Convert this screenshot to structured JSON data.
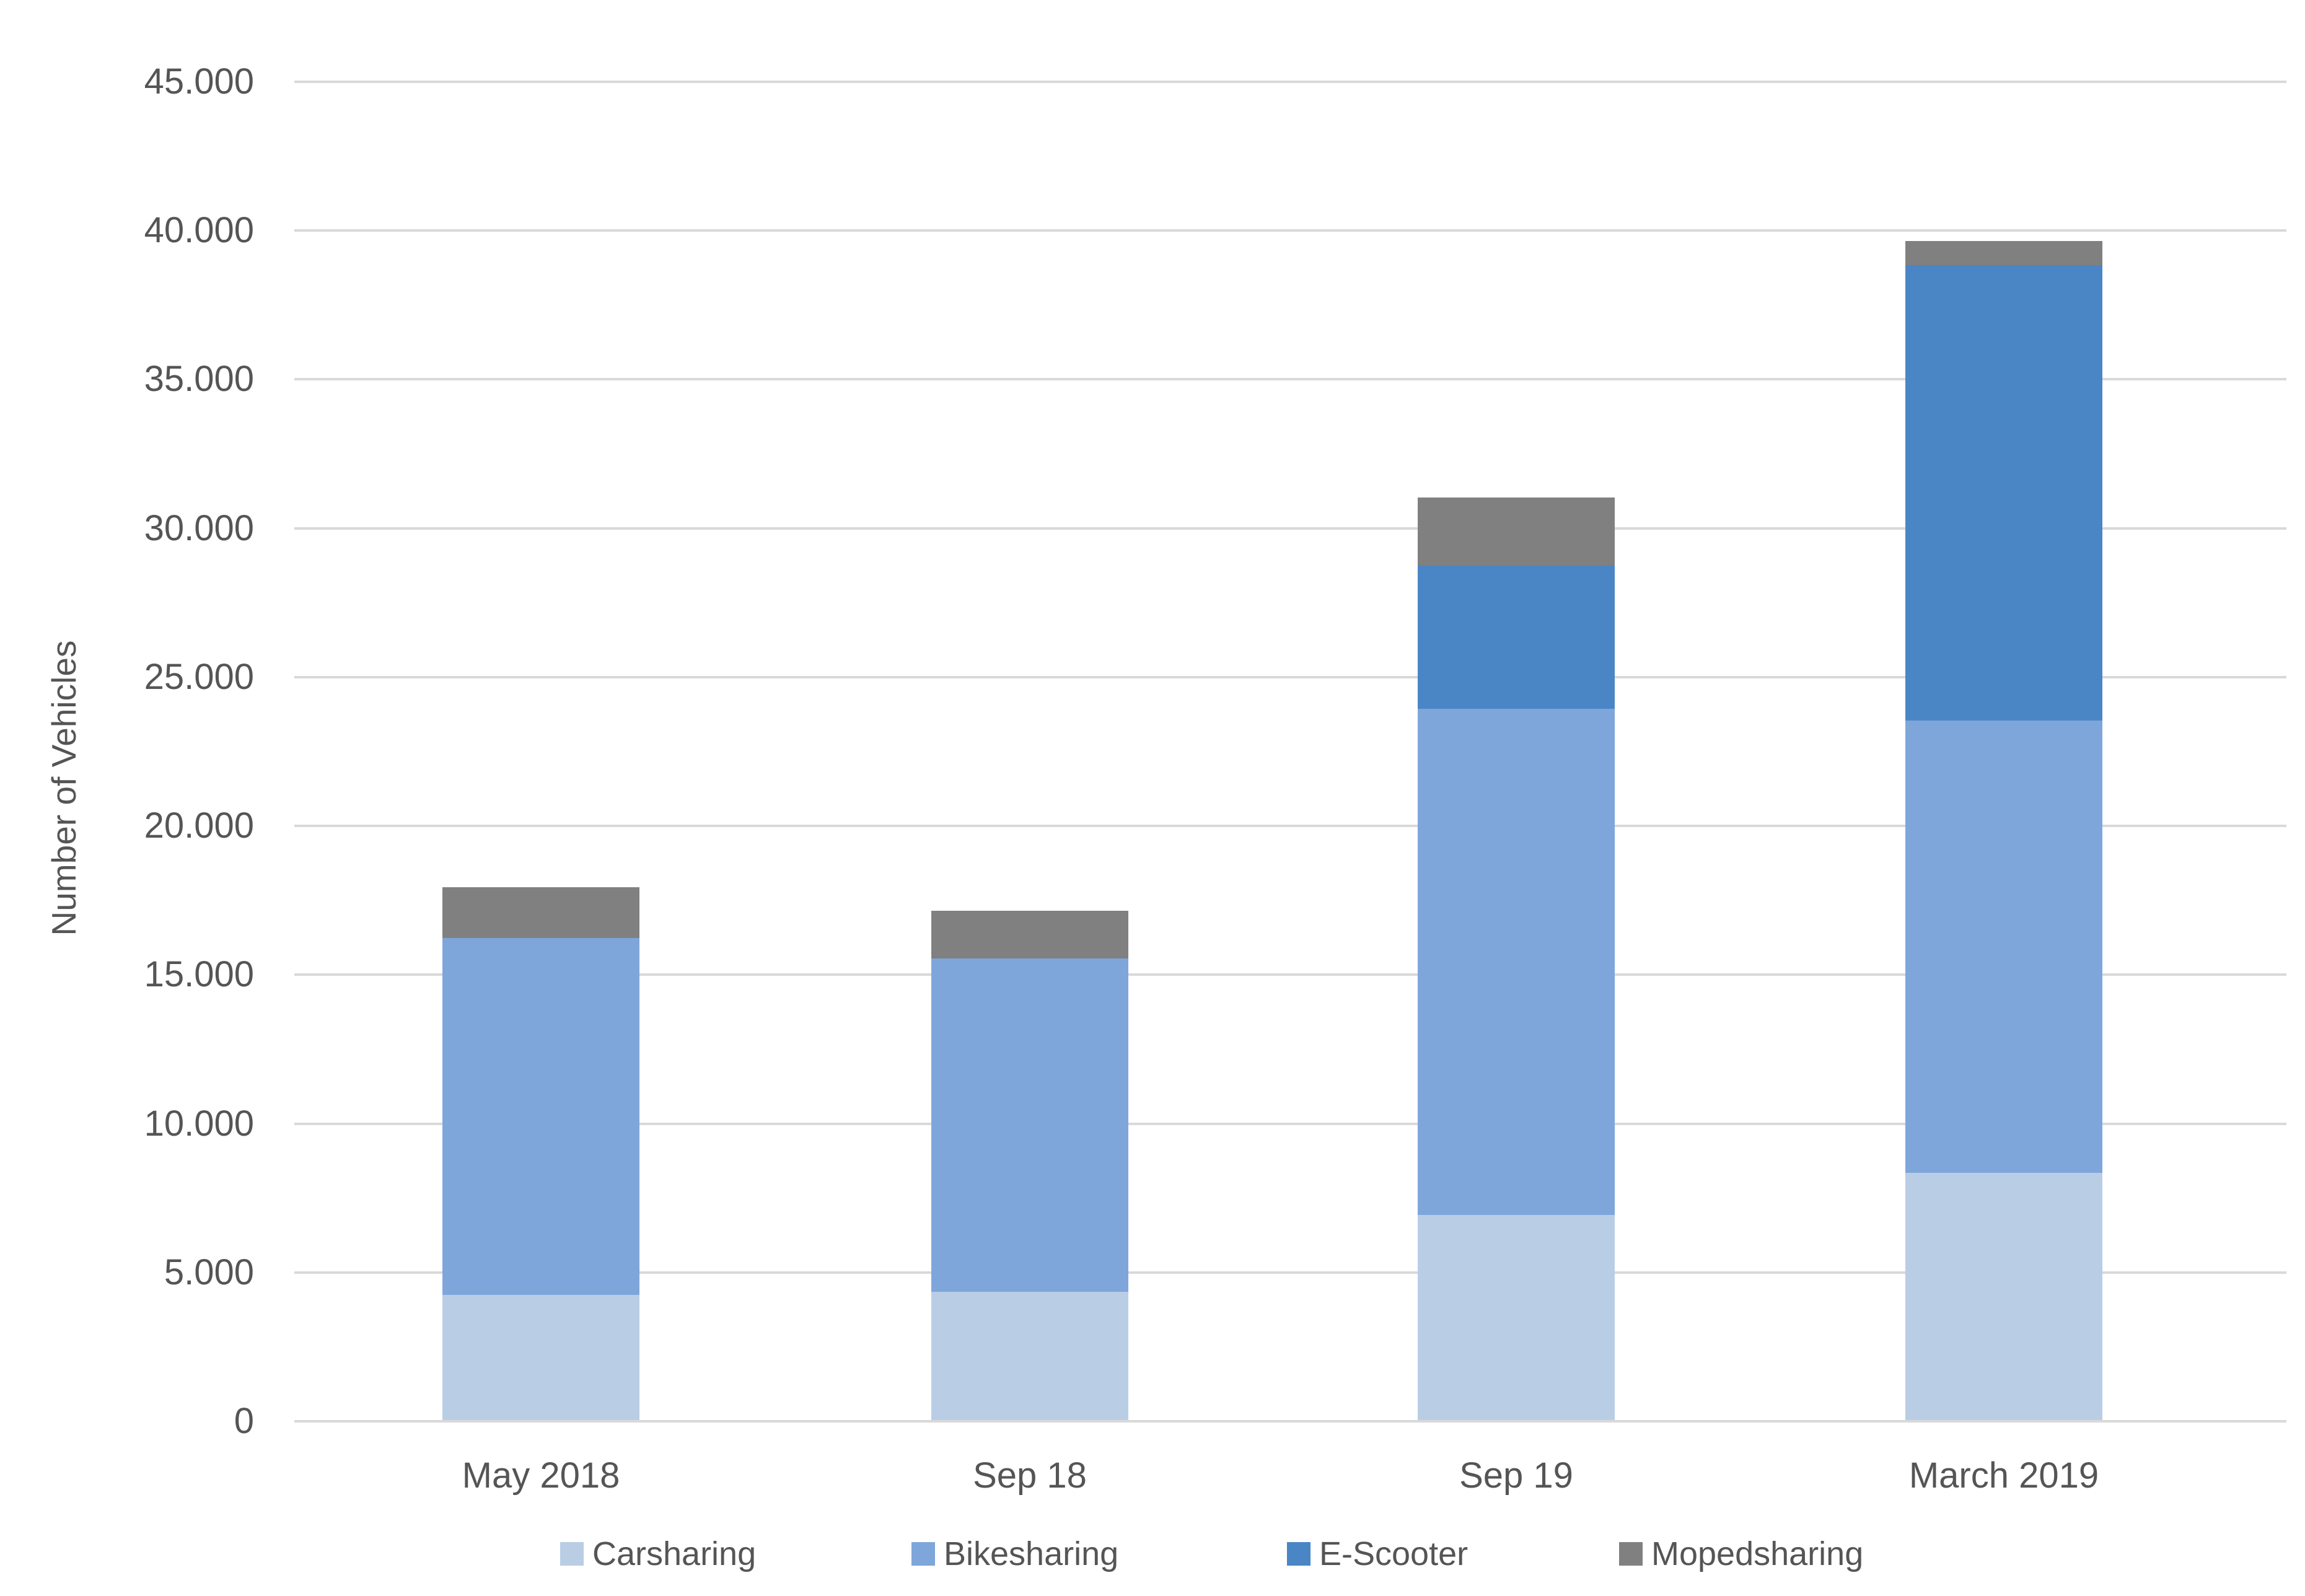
{
  "chart_data": {
    "type": "bar",
    "stacked": true,
    "title": "",
    "xlabel": "",
    "ylabel": "Number of Vehicles",
    "categories": [
      "May 2018",
      "Sep 18",
      "Sep 19",
      "March 2019"
    ],
    "series": [
      {
        "name": "Carsharing",
        "color": "#b9cde5",
        "values": [
          4200,
          4300,
          6900,
          8300
        ]
      },
      {
        "name": "Bikesharing",
        "color": "#7ea6da",
        "values": [
          12000,
          11200,
          17000,
          15200
        ]
      },
      {
        "name": "E-Scooter",
        "color": "#4a86c6",
        "values": [
          0,
          0,
          4800,
          15300
        ]
      },
      {
        "name": "Mopedsharing",
        "color": "#808080",
        "values": [
          1700,
          1600,
          2300,
          800
        ]
      }
    ],
    "totals": [
      17900,
      17100,
      31000,
      39600
    ],
    "ylim": [
      0,
      45000
    ],
    "y_tick_interval": 5000,
    "y_tick_labels": [
      "0",
      "5.000",
      "10.000",
      "15.000",
      "20.000",
      "25.000",
      "30.000",
      "35.000",
      "40.000",
      "45.000"
    ],
    "grid": true,
    "legend_position": "bottom"
  },
  "style": {
    "gridline_color": "#d9d9d9",
    "text_color": "#555555",
    "background_color": "#ffffff"
  }
}
